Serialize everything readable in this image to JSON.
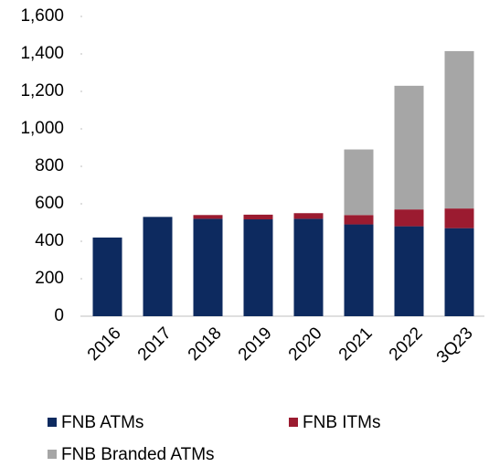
{
  "chart_data": {
    "type": "stacked_bar",
    "categories": [
      "2016",
      "2017",
      "2018",
      "2019",
      "2020",
      "2021",
      "2022",
      "3Q23"
    ],
    "series": [
      {
        "name": "FNB ATMs",
        "color": "#0d2a5f",
        "values": [
          420,
          530,
          520,
          517,
          520,
          490,
          480,
          470
        ]
      },
      {
        "name": "FNB ITMs",
        "color": "#9b1b30",
        "values": [
          0,
          0,
          20,
          25,
          30,
          50,
          90,
          105
        ]
      },
      {
        "name": "FNB Branded ATMs",
        "color": "#a6a6a6",
        "values": [
          0,
          0,
          0,
          0,
          0,
          350,
          660,
          840
        ]
      }
    ],
    "ylim": [
      0,
      1600
    ],
    "yticks": [
      0,
      200,
      400,
      600,
      800,
      {
        "value": 1000,
        "label": "1,000"
      },
      {
        "value": 1200,
        "label": "1,200"
      },
      {
        "value": 1400,
        "label": "1,400"
      },
      {
        "value": 1600,
        "label": "1,600"
      }
    ],
    "grid": false,
    "legend": "bottom"
  }
}
